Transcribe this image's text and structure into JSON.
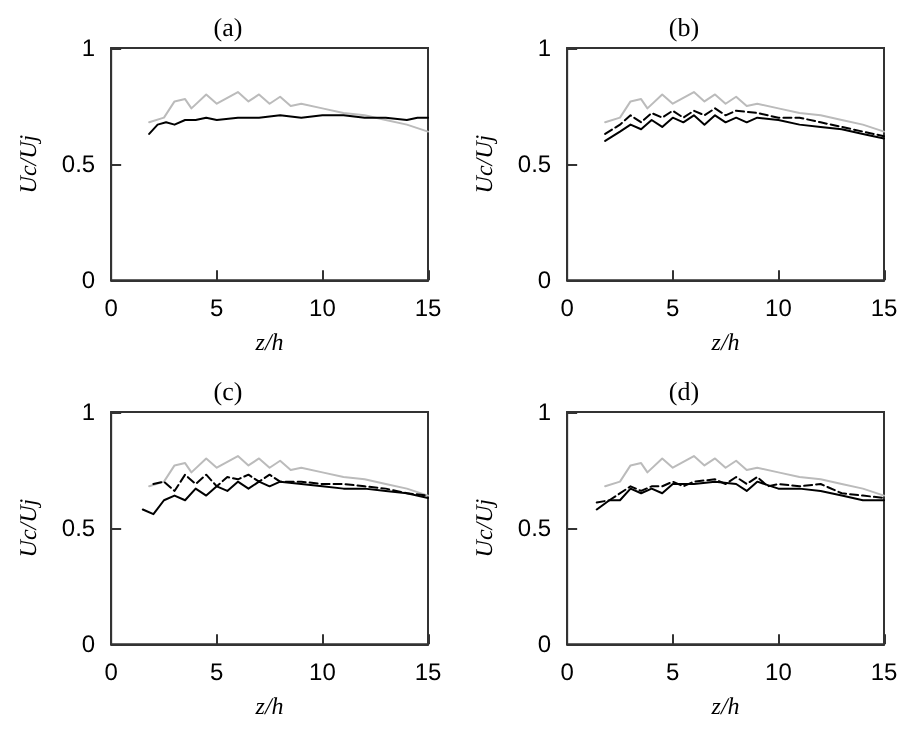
{
  "chart_data": [
    {
      "type": "line",
      "title": "(a)",
      "xlabel": "z/h",
      "ylabel": "Uc/Uj",
      "xlim": [
        0,
        15
      ],
      "xticks": [
        0,
        5,
        10,
        15
      ],
      "ylim": [
        0,
        1
      ],
      "yticks": [
        0,
        0.5,
        1
      ],
      "grid": false,
      "marker": "none",
      "series": [
        {
          "color": "#bbbbbb",
          "line_style": "solid",
          "x": [
            1.8,
            2.5,
            3,
            3.5,
            3.8,
            4.5,
            5,
            6,
            6.5,
            7,
            7.5,
            8,
            8.5,
            9,
            10,
            11,
            12,
            13,
            14,
            15
          ],
          "values": [
            0.68,
            0.7,
            0.77,
            0.78,
            0.74,
            0.8,
            0.76,
            0.81,
            0.77,
            0.8,
            0.76,
            0.79,
            0.75,
            0.76,
            0.74,
            0.72,
            0.71,
            0.69,
            0.67,
            0.64
          ]
        },
        {
          "color": "#000000",
          "line_style": "solid",
          "x": [
            1.8,
            2.2,
            2.6,
            3,
            3.5,
            4,
            4.5,
            5,
            6,
            7,
            8,
            9,
            10,
            11,
            12,
            13,
            14,
            14.5,
            15
          ],
          "values": [
            0.63,
            0.67,
            0.68,
            0.67,
            0.69,
            0.69,
            0.7,
            0.69,
            0.7,
            0.7,
            0.71,
            0.7,
            0.71,
            0.71,
            0.7,
            0.7,
            0.69,
            0.7,
            0.7
          ]
        }
      ]
    },
    {
      "type": "line",
      "title": "(b)",
      "xlabel": "z/h",
      "ylabel": "Uc/Uj",
      "xlim": [
        0,
        15
      ],
      "xticks": [
        0,
        5,
        10,
        15
      ],
      "ylim": [
        0,
        1
      ],
      "yticks": [
        0,
        0.5,
        1
      ],
      "grid": false,
      "marker": "none",
      "series": [
        {
          "color": "#bbbbbb",
          "line_style": "solid",
          "x": [
            1.8,
            2.5,
            3,
            3.5,
            3.8,
            4.5,
            5,
            6,
            6.5,
            7,
            7.5,
            8,
            8.5,
            9,
            10,
            11,
            12,
            13,
            14,
            15
          ],
          "values": [
            0.68,
            0.7,
            0.77,
            0.78,
            0.74,
            0.8,
            0.76,
            0.81,
            0.77,
            0.8,
            0.76,
            0.79,
            0.75,
            0.76,
            0.74,
            0.72,
            0.71,
            0.69,
            0.67,
            0.64
          ]
        },
        {
          "color": "#000000",
          "line_style": "dashed",
          "x": [
            1.8,
            2.5,
            3,
            3.5,
            4,
            4.5,
            5,
            5.5,
            6,
            6.5,
            7,
            7.5,
            8,
            9,
            10,
            11,
            12,
            13,
            14,
            15
          ],
          "values": [
            0.63,
            0.67,
            0.71,
            0.68,
            0.72,
            0.7,
            0.73,
            0.7,
            0.73,
            0.71,
            0.74,
            0.71,
            0.73,
            0.72,
            0.7,
            0.7,
            0.68,
            0.66,
            0.64,
            0.62
          ]
        },
        {
          "color": "#000000",
          "line_style": "solid",
          "x": [
            1.8,
            2.5,
            3,
            3.5,
            4,
            4.5,
            5,
            5.5,
            6,
            6.5,
            7,
            7.5,
            8,
            8.5,
            9,
            10,
            11,
            12,
            13,
            14,
            15
          ],
          "values": [
            0.6,
            0.64,
            0.67,
            0.65,
            0.69,
            0.66,
            0.7,
            0.68,
            0.71,
            0.67,
            0.71,
            0.68,
            0.7,
            0.68,
            0.7,
            0.69,
            0.67,
            0.66,
            0.65,
            0.63,
            0.61
          ]
        }
      ]
    },
    {
      "type": "line",
      "title": "(c)",
      "xlabel": "z/h",
      "ylabel": "Uc/Uj",
      "xlim": [
        0,
        15
      ],
      "xticks": [
        0,
        5,
        10,
        15
      ],
      "ylim": [
        0,
        1
      ],
      "yticks": [
        0,
        0.5,
        1
      ],
      "grid": false,
      "marker": "none",
      "series": [
        {
          "color": "#bbbbbb",
          "line_style": "solid",
          "x": [
            1.8,
            2.5,
            3,
            3.5,
            3.8,
            4.5,
            5,
            6,
            6.5,
            7,
            7.5,
            8,
            8.5,
            9,
            10,
            11,
            12,
            13,
            14,
            15
          ],
          "values": [
            0.68,
            0.7,
            0.77,
            0.78,
            0.74,
            0.8,
            0.76,
            0.81,
            0.77,
            0.8,
            0.76,
            0.79,
            0.75,
            0.76,
            0.74,
            0.72,
            0.71,
            0.69,
            0.67,
            0.64
          ]
        },
        {
          "color": "#000000",
          "line_style": "dashed",
          "x": [
            2,
            2.5,
            3,
            3.5,
            4,
            4.5,
            5,
            5.5,
            6,
            6.5,
            7,
            7.5,
            8,
            9,
            10,
            11,
            12,
            13,
            14,
            15
          ],
          "values": [
            0.69,
            0.7,
            0.66,
            0.73,
            0.69,
            0.73,
            0.68,
            0.72,
            0.71,
            0.73,
            0.7,
            0.73,
            0.7,
            0.7,
            0.69,
            0.69,
            0.68,
            0.67,
            0.65,
            0.64
          ]
        },
        {
          "color": "#000000",
          "line_style": "solid",
          "x": [
            1.5,
            2,
            2.5,
            3,
            3.5,
            4,
            4.5,
            5,
            5.5,
            6,
            6.5,
            7,
            7.5,
            8,
            9,
            10,
            11,
            12,
            13,
            14,
            15
          ],
          "values": [
            0.58,
            0.56,
            0.62,
            0.64,
            0.62,
            0.67,
            0.64,
            0.68,
            0.66,
            0.7,
            0.67,
            0.7,
            0.68,
            0.7,
            0.69,
            0.68,
            0.67,
            0.67,
            0.66,
            0.65,
            0.63
          ]
        }
      ]
    },
    {
      "type": "line",
      "title": "(d)",
      "xlabel": "z/h",
      "ylabel": "Uc/Uj",
      "xlim": [
        0,
        15
      ],
      "xticks": [
        0,
        5,
        10,
        15
      ],
      "ylim": [
        0,
        1
      ],
      "yticks": [
        0,
        0.5,
        1
      ],
      "grid": false,
      "marker": "none",
      "series": [
        {
          "color": "#bbbbbb",
          "line_style": "solid",
          "x": [
            1.8,
            2.5,
            3,
            3.5,
            3.8,
            4.5,
            5,
            6,
            6.5,
            7,
            7.5,
            8,
            8.5,
            9,
            10,
            11,
            12,
            13,
            14,
            15
          ],
          "values": [
            0.68,
            0.7,
            0.77,
            0.78,
            0.74,
            0.8,
            0.76,
            0.81,
            0.77,
            0.8,
            0.76,
            0.79,
            0.75,
            0.76,
            0.74,
            0.72,
            0.71,
            0.69,
            0.67,
            0.64
          ]
        },
        {
          "color": "#000000",
          "line_style": "dashed",
          "x": [
            1.4,
            2,
            3,
            3.5,
            4,
            4.5,
            5,
            5.5,
            6,
            7,
            7.5,
            8,
            8.5,
            9,
            9.5,
            10,
            11,
            12,
            13,
            14,
            15
          ],
          "values": [
            0.61,
            0.62,
            0.68,
            0.66,
            0.68,
            0.68,
            0.7,
            0.68,
            0.7,
            0.71,
            0.69,
            0.72,
            0.69,
            0.72,
            0.68,
            0.69,
            0.68,
            0.69,
            0.65,
            0.64,
            0.63
          ]
        },
        {
          "color": "#000000",
          "line_style": "solid",
          "x": [
            1.4,
            2,
            2.5,
            3,
            3.5,
            4,
            4.5,
            5,
            6,
            7,
            8,
            8.5,
            9,
            10,
            11,
            12,
            13,
            14,
            15
          ],
          "values": [
            0.58,
            0.62,
            0.62,
            0.67,
            0.65,
            0.67,
            0.65,
            0.69,
            0.69,
            0.7,
            0.69,
            0.66,
            0.7,
            0.67,
            0.67,
            0.66,
            0.64,
            0.62,
            0.62
          ]
        }
      ]
    }
  ]
}
